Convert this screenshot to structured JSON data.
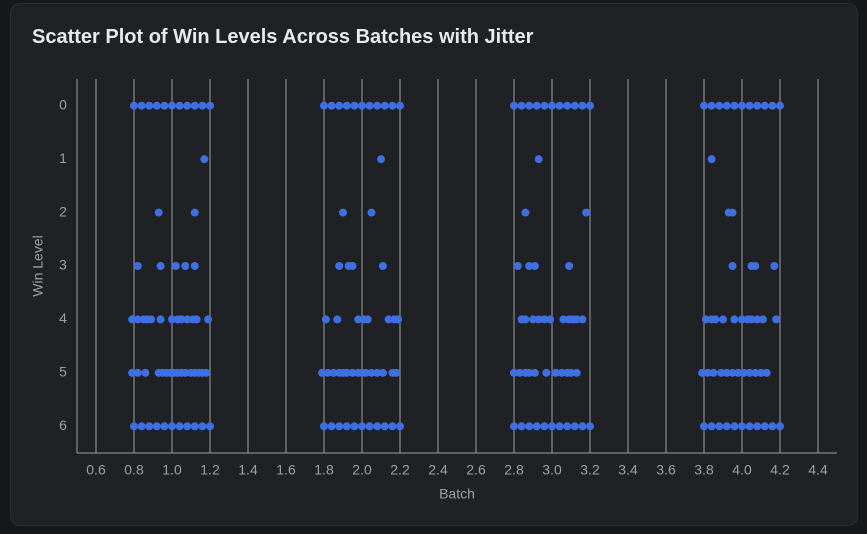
{
  "chart_data": {
    "type": "scatter",
    "title": "Scatter Plot of Win Levels Across Batches with Jitter",
    "x_label": "Batch",
    "y_label": "Win Level",
    "xlim": [
      0.5,
      4.5
    ],
    "xticks": [
      0.6,
      0.8,
      {
        "value": 1.0,
        "label": "1.0"
      },
      1.2,
      1.4,
      1.6,
      1.8,
      {
        "value": 2.0,
        "label": "2.0"
      },
      2.2,
      2.4,
      2.6,
      2.8,
      {
        "value": 3.0,
        "label": "3.0"
      },
      3.2,
      3.4,
      3.6,
      3.8,
      {
        "value": 4.0,
        "label": "4.0"
      },
      4.2,
      4.4
    ],
    "ylim": [
      6.5,
      -0.5
    ],
    "yticks": [
      0,
      1,
      2,
      3,
      4,
      5,
      6
    ],
    "grid": true,
    "series": [
      {
        "color": "#3e6fe3",
        "x": [
          0.8,
          0.84,
          0.88,
          0.92,
          0.96,
          1.0,
          1.04,
          1.08,
          1.12,
          1.16,
          1.2,
          0.8,
          0.84,
          0.88,
          0.92,
          0.96,
          1.0,
          1.04,
          1.08,
          1.12,
          1.16,
          1.2,
          1.17,
          0.93,
          1.12,
          0.82,
          0.94,
          1.02,
          1.07,
          1.12,
          0.79,
          0.82,
          0.85,
          0.87,
          0.89,
          0.94,
          1.0,
          1.03,
          1.05,
          1.08,
          1.11,
          1.13,
          1.19,
          0.79,
          0.82,
          0.86,
          0.93,
          0.95,
          0.97,
          0.99,
          1.01,
          1.03,
          1.05,
          1.07,
          1.1,
          1.12,
          1.14,
          1.16,
          1.18
        ],
        "values": [
          0,
          0,
          0,
          0,
          0,
          0,
          0,
          0,
          0,
          0,
          0,
          6,
          6,
          6,
          6,
          6,
          6,
          6,
          6,
          6,
          6,
          6,
          1,
          2,
          2,
          3,
          3,
          3,
          3,
          3,
          4,
          4,
          4,
          4,
          4,
          4,
          4,
          4,
          4,
          4,
          4,
          4,
          4,
          5,
          5,
          5,
          5,
          5,
          5,
          5,
          5,
          5,
          5,
          5,
          5,
          5,
          5,
          5,
          5
        ]
      },
      {
        "color": "#3e6fe3",
        "x": [
          1.8,
          1.84,
          1.88,
          1.92,
          1.96,
          2.0,
          2.04,
          2.08,
          2.12,
          2.16,
          2.2,
          1.8,
          1.84,
          1.88,
          1.92,
          1.96,
          2.0,
          2.04,
          2.08,
          2.12,
          2.16,
          2.2,
          2.1,
          1.9,
          2.05,
          1.88,
          1.93,
          1.95,
          2.11,
          1.81,
          1.87,
          1.98,
          2.01,
          2.03,
          2.14,
          2.17,
          2.19,
          1.79,
          1.82,
          1.85,
          1.88,
          1.9,
          1.92,
          1.95,
          1.98,
          2.0,
          2.02,
          2.05,
          2.08,
          2.11,
          2.16,
          2.18
        ],
        "values": [
          0,
          0,
          0,
          0,
          0,
          0,
          0,
          0,
          0,
          0,
          0,
          6,
          6,
          6,
          6,
          6,
          6,
          6,
          6,
          6,
          6,
          6,
          1,
          2,
          2,
          3,
          3,
          3,
          3,
          4,
          4,
          4,
          4,
          4,
          4,
          4,
          4,
          5,
          5,
          5,
          5,
          5,
          5,
          5,
          5,
          5,
          5,
          5,
          5,
          5,
          5,
          5
        ]
      },
      {
        "color": "#3e6fe3",
        "x": [
          2.8,
          2.84,
          2.88,
          2.92,
          2.96,
          3.0,
          3.04,
          3.08,
          3.12,
          3.16,
          3.2,
          2.8,
          2.84,
          2.88,
          2.92,
          2.96,
          3.0,
          3.04,
          3.08,
          3.12,
          3.16,
          3.2,
          2.93,
          2.86,
          3.18,
          2.82,
          2.88,
          2.91,
          3.09,
          2.84,
          2.86,
          2.9,
          2.93,
          2.96,
          2.99,
          3.06,
          3.09,
          3.11,
          3.13,
          3.16,
          2.8,
          2.83,
          2.86,
          2.88,
          2.91,
          2.97,
          3.02,
          3.05,
          3.08,
          3.1,
          3.13
        ],
        "values": [
          0,
          0,
          0,
          0,
          0,
          0,
          0,
          0,
          0,
          0,
          0,
          6,
          6,
          6,
          6,
          6,
          6,
          6,
          6,
          6,
          6,
          6,
          1,
          2,
          2,
          3,
          3,
          3,
          3,
          4,
          4,
          4,
          4,
          4,
          4,
          4,
          4,
          4,
          4,
          4,
          5,
          5,
          5,
          5,
          5,
          5,
          5,
          5,
          5,
          5,
          5
        ]
      },
      {
        "color": "#3e6fe3",
        "x": [
          3.8,
          3.84,
          3.88,
          3.92,
          3.96,
          4.0,
          4.04,
          4.08,
          4.12,
          4.16,
          4.2,
          3.8,
          3.84,
          3.88,
          3.92,
          3.96,
          4.0,
          4.04,
          4.08,
          4.12,
          4.16,
          4.2,
          3.84,
          3.93,
          3.95,
          3.95,
          4.05,
          4.07,
          4.17,
          3.81,
          3.84,
          3.86,
          3.9,
          3.96,
          4.0,
          4.03,
          4.05,
          4.08,
          4.11,
          4.18,
          3.79,
          3.82,
          3.85,
          3.89,
          3.92,
          3.95,
          3.98,
          4.01,
          4.04,
          4.07,
          4.1,
          4.13
        ],
        "values": [
          0,
          0,
          0,
          0,
          0,
          0,
          0,
          0,
          0,
          0,
          0,
          6,
          6,
          6,
          6,
          6,
          6,
          6,
          6,
          6,
          6,
          6,
          1,
          2,
          2,
          3,
          3,
          3,
          3,
          4,
          4,
          4,
          4,
          4,
          4,
          4,
          4,
          4,
          4,
          4,
          5,
          5,
          5,
          5,
          5,
          5,
          5,
          5,
          5,
          5,
          5,
          5
        ]
      }
    ]
  }
}
